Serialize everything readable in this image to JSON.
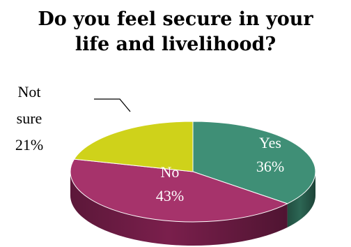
{
  "chart_data": {
    "type": "pie",
    "title_lines": [
      "Do you feel secure in your",
      "life and livelihood?"
    ],
    "slices": [
      {
        "label": "Yes",
        "percent_text": "36%",
        "value": 36,
        "color": "#3f8f76",
        "side": "#2c6654",
        "label_color": "#ffffff"
      },
      {
        "label": "No",
        "percent_text": "43%",
        "value": 43,
        "color": "#a6336b",
        "side": "#7a1f4c",
        "label_color": "#ffffff"
      },
      {
        "label_lines": [
          "Not",
          "sure"
        ],
        "percent_text": "21%",
        "value": 21,
        "color": "#cfd21a",
        "side": "#9a9c10",
        "label_color": "#000000"
      }
    ]
  }
}
